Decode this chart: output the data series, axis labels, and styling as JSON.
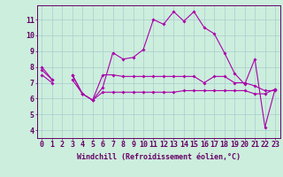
{
  "bg_color": "#cceedd",
  "grid_color": "#aacccc",
  "line_color": "#aa00aa",
  "marker_color": "#aa00aa",
  "xlabel": "Windchill (Refroidissement éolien,°C)",
  "xlabel_fontsize": 6.0,
  "tick_fontsize": 6.0,
  "ylim": [
    3.5,
    11.9
  ],
  "xlim": [
    -0.5,
    23.5
  ],
  "yticks": [
    4,
    5,
    6,
    7,
    8,
    9,
    10,
    11
  ],
  "xticks": [
    0,
    1,
    2,
    3,
    4,
    5,
    6,
    7,
    8,
    9,
    10,
    11,
    12,
    13,
    14,
    15,
    16,
    17,
    18,
    19,
    20,
    21,
    22,
    23
  ],
  "line1": [
    8.0,
    7.2,
    null,
    7.5,
    6.3,
    5.9,
    6.7,
    8.9,
    8.5,
    8.6,
    9.1,
    11.0,
    10.7,
    11.5,
    10.9,
    11.5,
    10.5,
    10.1,
    8.9,
    7.6,
    6.9,
    8.5,
    4.2,
    6.6
  ],
  "line2": [
    7.8,
    7.2,
    null,
    7.5,
    6.3,
    5.9,
    7.5,
    7.5,
    7.4,
    7.4,
    7.4,
    7.4,
    7.4,
    7.4,
    7.4,
    7.4,
    7.0,
    7.4,
    7.4,
    7.0,
    7.0,
    6.8,
    6.5,
    6.5
  ],
  "line3": [
    7.5,
    7.0,
    null,
    7.2,
    6.3,
    5.9,
    6.4,
    6.4,
    6.4,
    6.4,
    6.4,
    6.4,
    6.4,
    6.4,
    6.5,
    6.5,
    6.5,
    6.5,
    6.5,
    6.5,
    6.5,
    6.3,
    6.3,
    6.6
  ]
}
